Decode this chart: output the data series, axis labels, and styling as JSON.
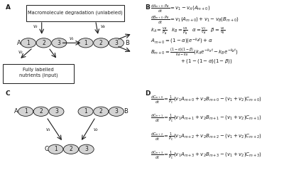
{
  "bg_color": "#ffffff",
  "text_color": "#1a1a1a",
  "circle_fill": "#d4d4d4",
  "circle_edge": "#1a1a1a",
  "panel_labels": [
    "A",
    "B",
    "C",
    "D"
  ],
  "eq_fontsize": 5.0,
  "label_fontsize": 6.5,
  "diagram_fontsize": 5.5,
  "eqs_B": [
    [
      "$\\frac{dA_{m+0}\\cdot P_A}{dt} = v_1 - v_A(A_{m+0})$",
      0.92
    ],
    [
      "$\\frac{dB_{m+0}\\cdot P_B}{dt} = v_1(A_{m+0}) + v_1 - v_B(B_{m+0})$",
      0.79
    ],
    [
      "$k_A = \\frac{v_A}{P_A}\\quad k_B = \\frac{v_B}{P_B}\\quad \\alpha = \\frac{v_2}{v_A}\\quad \\beta = \\frac{v_4}{v_B}$",
      0.655
    ],
    [
      "$A_{m+0} = (1-\\alpha)(e^{-k_A t}) + \\alpha$",
      0.545
    ],
    [
      "$B_{m+0} = \\frac{(1-\\alpha)(1-\\beta)}{k_A - k_B}(k_A e^{-k_B t} - k_B e^{-k_A t})$",
      0.41
    ],
    [
      "$\\qquad\\qquad\\qquad + (1-(1-\\alpha)(1-\\beta))$",
      0.305
    ]
  ],
  "eqs_D": [
    [
      "$\\frac{dC_{m+0}}{dt} = \\frac{1}{P_C}(v_1 A_{m+0} + v_2 B_{m+0} - (v_1+v_2)C_{m+0})$",
      0.86
    ],
    [
      "$\\frac{dC_{m+1}}{dt} = \\frac{1}{P_C}(v_1 A_{m+1} + v_2 B_{m+1} - (v_1+v_2)C_{m+1})$",
      0.645
    ],
    [
      "$\\frac{dC_{m+2}}{dt} = \\frac{1}{P_C}(v_1 A_{m+2} + v_2 B_{m+2} - (v_1+v_2)C_{m+2})$",
      0.43
    ],
    [
      "$\\frac{dC_{m+3}}{dt} = \\frac{1}{P_C}(v_1 A_{m+3} + v_2 B_{m+3} - (v_1+v_2)C_{m+3})$",
      0.215
    ]
  ]
}
